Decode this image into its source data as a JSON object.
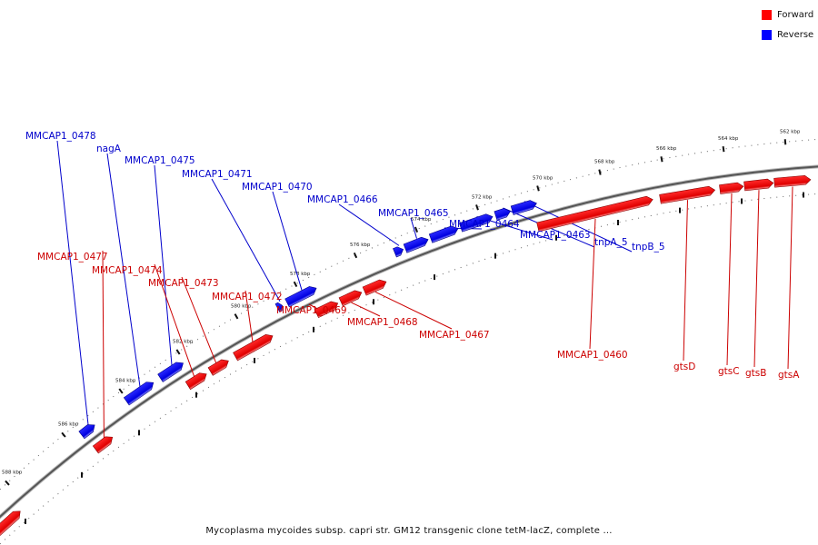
{
  "legend": {
    "forward_label": "Forward",
    "reverse_label": "Reverse",
    "forward_color": "#ff0000",
    "reverse_color": "#0000ff"
  },
  "caption": "Mycoplasma mycoides subsp. capri str. GM12 transgenic clone tetM-lacZ, complete ...",
  "ticks": [
    {
      "label": "588 kbp"
    },
    {
      "label": "586 kbp"
    },
    {
      "label": "584 kbp"
    },
    {
      "label": "582 kbp"
    },
    {
      "label": "580 kbp"
    },
    {
      "label": "578 kbp"
    },
    {
      "label": "576 kbp"
    },
    {
      "label": "574 kbp"
    },
    {
      "label": "572 kbp"
    },
    {
      "label": "570 kbp"
    },
    {
      "label": "568 kbp"
    },
    {
      "label": "566 kbp"
    },
    {
      "label": "564 kbp"
    },
    {
      "label": "562 kbp"
    }
  ],
  "genes": [
    {
      "label": "MMCAP1_0478",
      "strand": "reverse"
    },
    {
      "label": "nagA",
      "strand": "reverse"
    },
    {
      "label": "MMCAP1_0475",
      "strand": "reverse"
    },
    {
      "label": "MMCAP1_0471",
      "strand": "reverse"
    },
    {
      "label": "MMCAP1_0470",
      "strand": "reverse"
    },
    {
      "label": "MMCAP1_0466",
      "strand": "reverse"
    },
    {
      "label": "MMCAP1_0465",
      "strand": "reverse"
    },
    {
      "label": "MMCAP1_0464",
      "strand": "reverse"
    },
    {
      "label": "MMCAP1_0463",
      "strand": "reverse"
    },
    {
      "label": "tnpA_5",
      "strand": "reverse"
    },
    {
      "label": "tnpB_5",
      "strand": "reverse"
    },
    {
      "label": "MMCAP1_0477",
      "strand": "forward"
    },
    {
      "label": "MMCAP1_0474",
      "strand": "forward"
    },
    {
      "label": "MMCAP1_0473",
      "strand": "forward"
    },
    {
      "label": "MMCAP1_0472",
      "strand": "forward"
    },
    {
      "label": "MMCAP1_0469",
      "strand": "forward"
    },
    {
      "label": "MMCAP1_0468",
      "strand": "forward"
    },
    {
      "label": "MMCAP1_0467",
      "strand": "forward"
    },
    {
      "label": "MMCAP1_0460",
      "strand": "forward"
    },
    {
      "label": "gtsD",
      "strand": "forward"
    },
    {
      "label": "gtsC",
      "strand": "forward"
    },
    {
      "label": "gtsB",
      "strand": "forward"
    },
    {
      "label": "gtsA",
      "strand": "forward"
    }
  ]
}
